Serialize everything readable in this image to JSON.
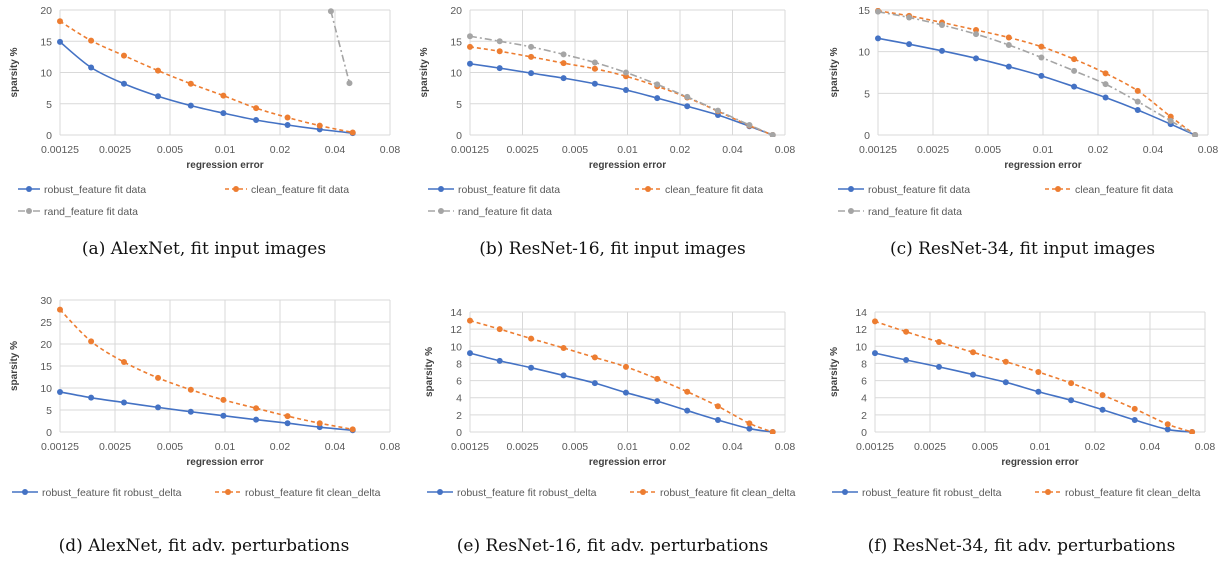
{
  "colors": {
    "robust": "#4472C4",
    "clean": "#ED7D31",
    "rand": "#A5A5A5",
    "grid": "#D9D9D9"
  },
  "chart_data": [
    {
      "id": "a",
      "caption": "(a) AlexNet, fit input images",
      "type": "line",
      "xlabel": "regression  error",
      "ylabel": "sparsity %",
      "x_scale": "log",
      "xlim": [
        0.00125,
        0.08
      ],
      "ylim": [
        0,
        20
      ],
      "y_ticks": [
        0,
        5,
        10,
        15,
        20
      ],
      "x_tick_labels": [
        "0.00125",
        "0.0025",
        "0.005",
        "0.01",
        "0.02",
        "0.04",
        "0.08"
      ],
      "legend_position": "bottom",
      "series": [
        {
          "name": "robust_feature fit data",
          "style": "robust",
          "x": [
            0.00125,
            0.00185,
            0.0028,
            0.0043,
            0.0065,
            0.0098,
            0.0148,
            0.022,
            0.033,
            0.05
          ],
          "y": [
            14.9,
            10.8,
            8.2,
            6.2,
            4.7,
            3.5,
            2.4,
            1.6,
            0.9,
            0.3
          ]
        },
        {
          "name": "clean_feature fit data",
          "style": "clean",
          "x": [
            0.00125,
            0.00185,
            0.0028,
            0.0043,
            0.0065,
            0.0098,
            0.0148,
            0.022,
            0.033,
            0.05
          ],
          "y": [
            18.2,
            15.1,
            12.7,
            10.3,
            8.2,
            6.3,
            4.3,
            2.8,
            1.5,
            0.4
          ]
        },
        {
          "name": "rand_feature fit data",
          "style": "rand",
          "x": [
            0.038,
            0.048
          ],
          "y": [
            19.8,
            8.3
          ]
        }
      ]
    },
    {
      "id": "b",
      "caption": "(b) ResNet-16, fit input images",
      "type": "line",
      "xlabel": "regression  error",
      "ylabel": "sparsity %",
      "x_scale": "log",
      "xlim": [
        0.00125,
        0.08
      ],
      "ylim": [
        0,
        20
      ],
      "y_ticks": [
        0,
        5,
        10,
        15,
        20
      ],
      "x_tick_labels": [
        "0.00125",
        "0.0025",
        "0.005",
        "0.01",
        "0.02",
        "0.04",
        "0.08"
      ],
      "legend_position": "bottom",
      "series": [
        {
          "name": "robust_feature fit data",
          "style": "robust",
          "x": [
            0.00125,
            0.00185,
            0.0028,
            0.0043,
            0.0065,
            0.0098,
            0.0148,
            0.022,
            0.033,
            0.05,
            0.068
          ],
          "y": [
            11.4,
            10.7,
            9.9,
            9.1,
            8.2,
            7.2,
            5.9,
            4.6,
            3.2,
            1.4,
            0.0
          ]
        },
        {
          "name": "clean_feature fit data",
          "style": "clean",
          "x": [
            0.00125,
            0.00185,
            0.0028,
            0.0043,
            0.0065,
            0.0098,
            0.0148,
            0.022,
            0.033,
            0.05,
            0.068
          ],
          "y": [
            14.1,
            13.4,
            12.5,
            11.5,
            10.6,
            9.4,
            7.8,
            6.0,
            3.8,
            1.5,
            0.0
          ]
        },
        {
          "name": "rand_feature fit data",
          "style": "rand",
          "x": [
            0.00125,
            0.00185,
            0.0028,
            0.0043,
            0.0065,
            0.0098,
            0.0148,
            0.022,
            0.033,
            0.05,
            0.068
          ],
          "y": [
            15.8,
            15.0,
            14.1,
            12.9,
            11.6,
            10.0,
            8.1,
            6.1,
            3.9,
            1.6,
            0.0
          ]
        }
      ]
    },
    {
      "id": "c",
      "caption": "(c) ResNet-34, fit input images",
      "type": "line",
      "xlabel": "regression  error",
      "ylabel": "sparsity %",
      "x_scale": "log",
      "xlim": [
        0.00125,
        0.08
      ],
      "ylim": [
        0,
        15
      ],
      "y_ticks": [
        0,
        5,
        10,
        15
      ],
      "x_tick_labels": [
        "0.00125",
        "0.0025",
        "0.005",
        "0.01",
        "0.02",
        "0.04",
        "0.08"
      ],
      "legend_position": "bottom",
      "series": [
        {
          "name": "robust_feature fit data",
          "style": "robust",
          "x": [
            0.00125,
            0.00185,
            0.0028,
            0.0043,
            0.0065,
            0.0098,
            0.0148,
            0.022,
            0.033,
            0.05,
            0.068
          ],
          "y": [
            11.6,
            10.9,
            10.1,
            9.2,
            8.2,
            7.1,
            5.8,
            4.5,
            3.0,
            1.3,
            0.0
          ]
        },
        {
          "name": "clean_feature fit data",
          "style": "clean",
          "x": [
            0.00125,
            0.00185,
            0.0028,
            0.0043,
            0.0065,
            0.0098,
            0.0148,
            0.022,
            0.033,
            0.05,
            0.068
          ],
          "y": [
            14.9,
            14.3,
            13.5,
            12.6,
            11.7,
            10.6,
            9.1,
            7.4,
            5.3,
            2.2,
            0.0
          ]
        },
        {
          "name": "rand_feature fit data",
          "style": "rand",
          "x": [
            0.00125,
            0.00185,
            0.0028,
            0.0043,
            0.0065,
            0.0098,
            0.0148,
            0.022,
            0.033,
            0.05,
            0.068
          ],
          "y": [
            14.8,
            14.1,
            13.2,
            12.1,
            10.8,
            9.3,
            7.7,
            6.1,
            4.0,
            1.7,
            0.0
          ]
        }
      ]
    },
    {
      "id": "d",
      "caption": "(d) AlexNet, fit adv. perturbations",
      "type": "line",
      "xlabel": "regression  error",
      "ylabel": "sparsity %",
      "x_scale": "log",
      "xlim": [
        0.00125,
        0.08
      ],
      "ylim": [
        0,
        30
      ],
      "y_ticks": [
        0,
        5,
        10,
        15,
        20,
        25,
        30
      ],
      "x_tick_labels": [
        "0.00125",
        "0.0025",
        "0.005",
        "0.01",
        "0.02",
        "0.04",
        "0.08"
      ],
      "legend_position": "bottom",
      "series": [
        {
          "name": "robust_feature fit robust_delta",
          "style": "robust",
          "x": [
            0.00125,
            0.00185,
            0.0028,
            0.0043,
            0.0065,
            0.0098,
            0.0148,
            0.022,
            0.033,
            0.05
          ],
          "y": [
            9.1,
            7.8,
            6.7,
            5.6,
            4.6,
            3.7,
            2.8,
            2.0,
            1.1,
            0.4
          ]
        },
        {
          "name": "robust_feature fit clean_delta",
          "style": "clean",
          "x": [
            0.00125,
            0.00185,
            0.0028,
            0.0043,
            0.0065,
            0.0098,
            0.0148,
            0.022,
            0.033,
            0.05
          ],
          "y": [
            27.8,
            20.6,
            15.9,
            12.3,
            9.6,
            7.3,
            5.4,
            3.6,
            2.0,
            0.6
          ]
        }
      ]
    },
    {
      "id": "e",
      "caption": "(e) ResNet-16, fit adv. perturbations",
      "type": "line",
      "xlabel": "regression  error",
      "ylabel": "sparsity %",
      "x_scale": "log",
      "xlim": [
        0.00125,
        0.08
      ],
      "ylim": [
        0,
        14
      ],
      "y_ticks": [
        0,
        2,
        4,
        6,
        8,
        10,
        12,
        14
      ],
      "x_tick_labels": [
        "0.00125",
        "0.0025",
        "0.005",
        "0.01",
        "0.02",
        "0.04",
        "0.08"
      ],
      "legend_position": "bottom",
      "series": [
        {
          "name": "robust_feature fit robust_delta",
          "style": "robust",
          "x": [
            0.00125,
            0.00185,
            0.0028,
            0.0043,
            0.0065,
            0.0098,
            0.0148,
            0.022,
            0.033,
            0.05,
            0.068
          ],
          "y": [
            9.2,
            8.3,
            7.5,
            6.6,
            5.7,
            4.6,
            3.6,
            2.5,
            1.4,
            0.4,
            0.0
          ]
        },
        {
          "name": "robust_feature fit clean_delta",
          "style": "clean",
          "x": [
            0.00125,
            0.00185,
            0.0028,
            0.0043,
            0.0065,
            0.0098,
            0.0148,
            0.022,
            0.033,
            0.05,
            0.068
          ],
          "y": [
            13.0,
            12.0,
            10.9,
            9.8,
            8.7,
            7.6,
            6.2,
            4.7,
            3.0,
            1.0,
            0.0
          ]
        }
      ]
    },
    {
      "id": "f",
      "caption": "(f) ResNet-34, fit adv. perturbations",
      "type": "line",
      "xlabel": "regression  error",
      "ylabel": "sparsity %",
      "x_scale": "log",
      "xlim": [
        0.00125,
        0.08
      ],
      "ylim": [
        0,
        14
      ],
      "y_ticks": [
        0,
        2,
        4,
        6,
        8,
        10,
        12,
        14
      ],
      "x_tick_labels": [
        "0.00125",
        "0.0025",
        "0.005",
        "0.01",
        "0.02",
        "0.04",
        "0.08"
      ],
      "legend_position": "bottom",
      "series": [
        {
          "name": "robust_feature fit robust_delta",
          "style": "robust",
          "x": [
            0.00125,
            0.00185,
            0.0028,
            0.0043,
            0.0065,
            0.0098,
            0.0148,
            0.022,
            0.033,
            0.05,
            0.068
          ],
          "y": [
            9.2,
            8.4,
            7.6,
            6.7,
            5.8,
            4.7,
            3.7,
            2.6,
            1.4,
            0.3,
            0.0
          ]
        },
        {
          "name": "robust_feature fit clean_delta",
          "style": "clean",
          "x": [
            0.00125,
            0.00185,
            0.0028,
            0.0043,
            0.0065,
            0.0098,
            0.0148,
            0.022,
            0.033,
            0.05,
            0.068
          ],
          "y": [
            12.9,
            11.7,
            10.5,
            9.3,
            8.2,
            7.0,
            5.7,
            4.3,
            2.7,
            0.9,
            0.0
          ]
        }
      ]
    }
  ]
}
